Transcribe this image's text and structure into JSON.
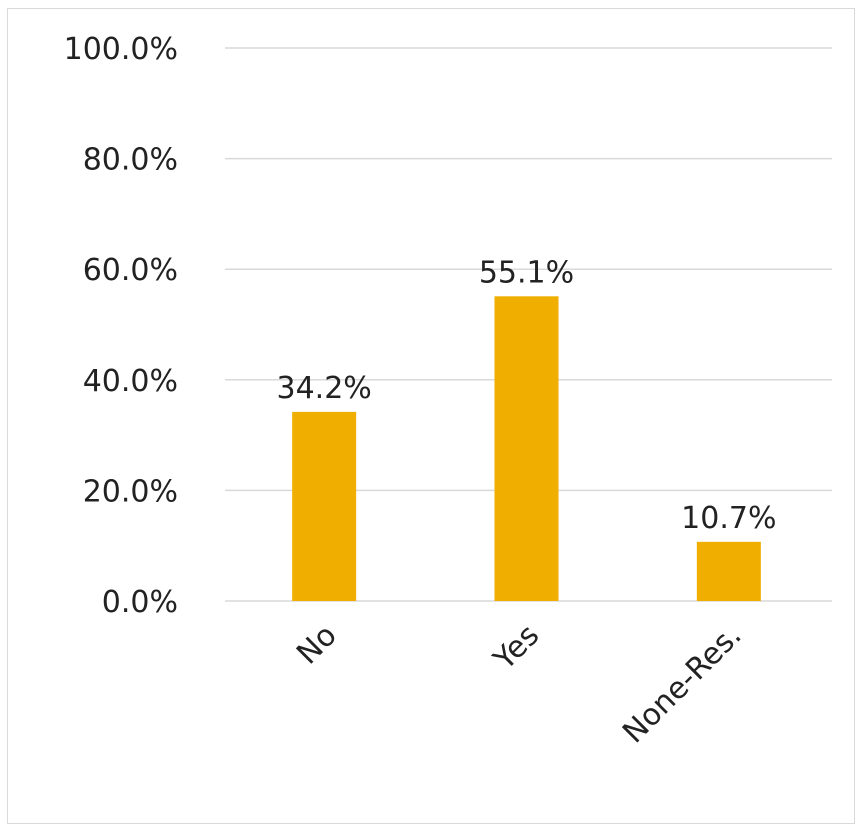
{
  "chart_data": {
    "type": "bar",
    "categories": [
      "No",
      "Yes",
      "None-Res."
    ],
    "values": [
      34.2,
      55.1,
      10.7
    ],
    "data_labels": [
      "34.2%",
      "55.1%",
      "10.7%"
    ],
    "ylim": [
      0,
      100
    ],
    "yticks": [
      0,
      20,
      40,
      60,
      80,
      100
    ],
    "ytick_labels": [
      "0.0%",
      "20.0%",
      "40.0%",
      "60.0%",
      "80.0%",
      "100.0%"
    ],
    "grid": true,
    "legend": "none",
    "colors": {
      "bar": "#F0AE00",
      "grid": "#d9d9d9",
      "text": "#222222"
    }
  }
}
